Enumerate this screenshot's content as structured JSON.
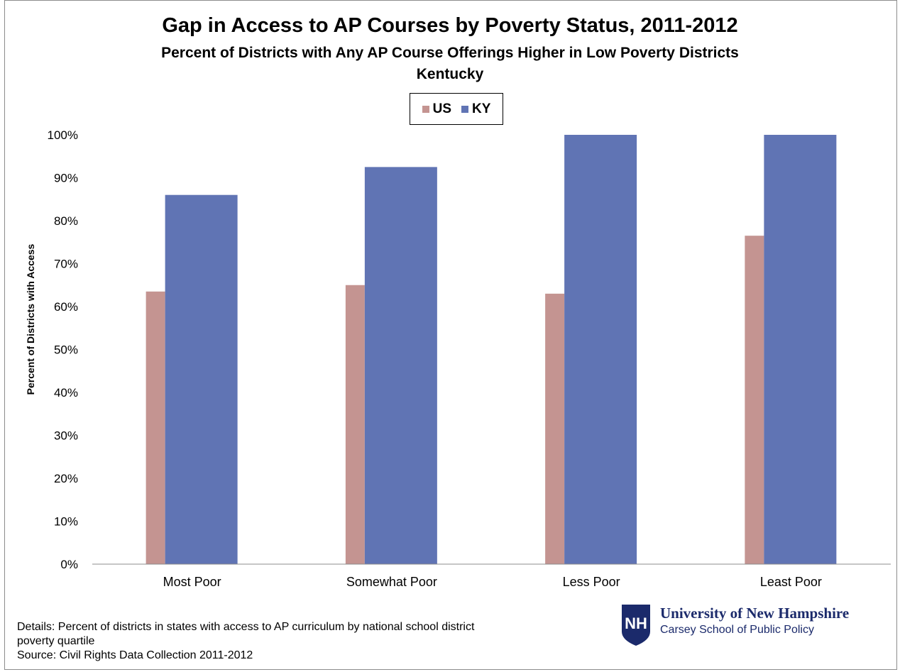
{
  "chart_data": {
    "type": "bar",
    "title": "Gap in Access to AP Courses by Poverty Status, 2011-2012",
    "subtitle": "Percent of Districts with Any AP Course Offerings Higher in Low Poverty Districts",
    "subtitle2": "Kentucky",
    "xlabel": "",
    "ylabel": "Percent of Districts  with Access",
    "ylim": [
      0,
      100
    ],
    "yticks": [
      "0%",
      "10%",
      "20%",
      "30%",
      "40%",
      "50%",
      "60%",
      "70%",
      "80%",
      "90%",
      "100%"
    ],
    "categories": [
      "Most Poor",
      "Somewhat Poor",
      "Less Poor",
      "Least Poor"
    ],
    "series": [
      {
        "name": "US",
        "color": "#c49491",
        "values": [
          63.5,
          65,
          63,
          76.5
        ]
      },
      {
        "name": "KY",
        "color": "#6074b4",
        "values": [
          86,
          92.5,
          100,
          100
        ]
      }
    ],
    "legend": "top-center",
    "grid": false
  },
  "footer": {
    "details_line1": "Details: Percent of districts in states with access to AP curriculum by national school district",
    "details_line2": "poverty quartile",
    "source": "Source: Civil Rights Data Collection 2011-2012"
  },
  "logo": {
    "initials": "NH",
    "line1": "University of New Hampshire",
    "line2": "Carsey School of Public Policy",
    "color": "#1b2a6b"
  }
}
